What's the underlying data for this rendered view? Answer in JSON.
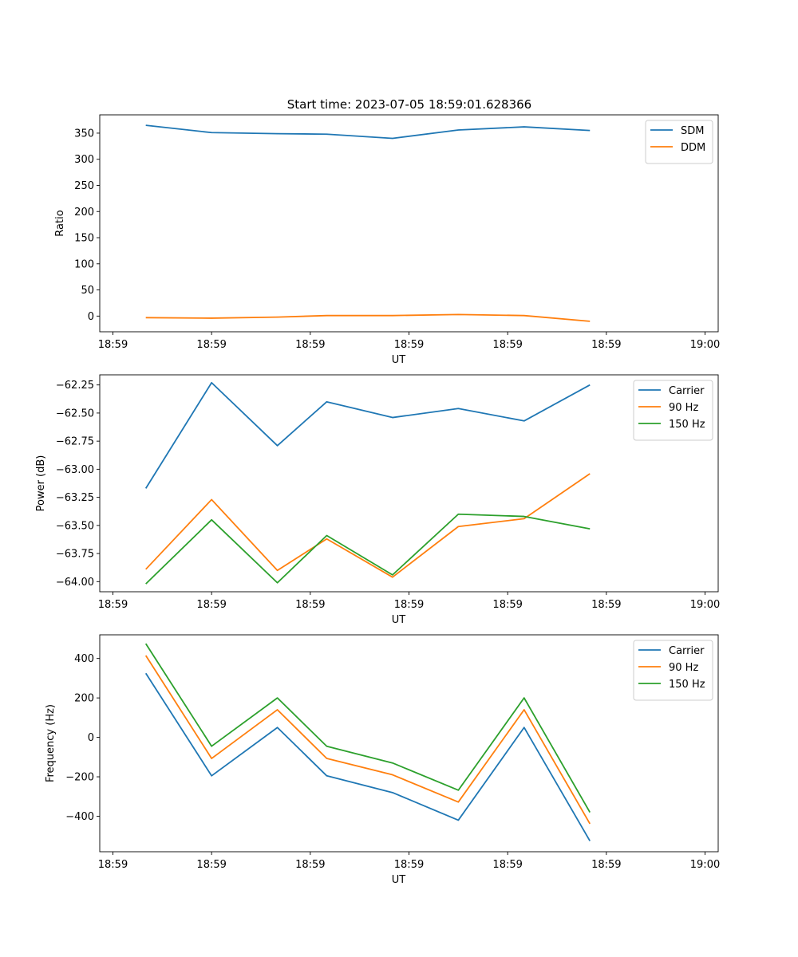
{
  "figure_title": "Start time: 2023-07-05 18:59:01.628366",
  "chart_data": [
    {
      "type": "line",
      "title": "Start time: 2023-07-05 18:59:01.628366",
      "xlabel": "UT",
      "ylabel": "Ratio",
      "x_seconds": [
        1.0,
        3.0,
        5.0,
        6.5,
        8.5,
        10.5,
        12.5,
        14.5
      ],
      "xlim": [
        -0.4,
        18.4
      ],
      "xticks": [
        0,
        3,
        6,
        9,
        12,
        15,
        18
      ],
      "xtick_labels": [
        "18:59",
        "18:59",
        "18:59",
        "18:59",
        "18:59",
        "18:59",
        "19:00"
      ],
      "ylim": [
        -30,
        385
      ],
      "yticks": [
        0,
        50,
        100,
        150,
        200,
        250,
        300,
        350
      ],
      "ytick_labels": [
        "0",
        "50",
        "100",
        "150",
        "200",
        "250",
        "300",
        "350"
      ],
      "legend": "upper right",
      "series": [
        {
          "name": "SDM",
          "color": "#1f77b4",
          "values": [
            365,
            351,
            349,
            348,
            340,
            356,
            362,
            355
          ]
        },
        {
          "name": "DDM",
          "color": "#ff7f0e",
          "values": [
            -3,
            -4,
            -2,
            1,
            1,
            3,
            1,
            -10
          ]
        }
      ]
    },
    {
      "type": "line",
      "title": "",
      "xlabel": "UT",
      "ylabel": "Power (dB)",
      "x_seconds": [
        1.0,
        3.0,
        5.0,
        6.5,
        8.5,
        10.5,
        12.5,
        14.5
      ],
      "xlim": [
        -0.4,
        18.4
      ],
      "xticks": [
        0,
        3,
        6,
        9,
        12,
        15,
        18
      ],
      "xtick_labels": [
        "18:59",
        "18:59",
        "18:59",
        "18:59",
        "18:59",
        "18:59",
        "19:00"
      ],
      "ylim": [
        -64.09,
        -62.16
      ],
      "yticks": [
        -64.0,
        -63.75,
        -63.5,
        -63.25,
        -63.0,
        -62.75,
        -62.5,
        -62.25
      ],
      "ytick_labels": [
        "−64.00",
        "−63.75",
        "−63.50",
        "−63.25",
        "−63.00",
        "−62.75",
        "−62.50",
        "−62.25"
      ],
      "legend": "upper right",
      "series": [
        {
          "name": "Carrier",
          "color": "#1f77b4",
          "values": [
            -63.17,
            -62.23,
            -62.79,
            -62.4,
            -62.54,
            -62.46,
            -62.57,
            -62.25
          ]
        },
        {
          "name": "90 Hz",
          "color": "#ff7f0e",
          "values": [
            -63.89,
            -63.27,
            -63.9,
            -63.62,
            -63.96,
            -63.51,
            -63.44,
            -63.04
          ]
        },
        {
          "name": "150 Hz",
          "color": "#2ca02c",
          "values": [
            -64.02,
            -63.45,
            -64.01,
            -63.59,
            -63.94,
            -63.4,
            -63.42,
            -63.53
          ]
        }
      ]
    },
    {
      "type": "line",
      "title": "",
      "xlabel": "UT",
      "ylabel": "Frequency (Hz)",
      "x_seconds": [
        1.0,
        3.0,
        5.0,
        6.5,
        8.5,
        10.5,
        12.5,
        14.5
      ],
      "xlim": [
        -0.4,
        18.4
      ],
      "xticks": [
        0,
        3,
        6,
        9,
        12,
        15,
        18
      ],
      "xtick_labels": [
        "18:59",
        "18:59",
        "18:59",
        "18:59",
        "18:59",
        "18:59",
        "19:00"
      ],
      "ylim": [
        -580,
        520
      ],
      "yticks": [
        -400,
        -200,
        0,
        200,
        400
      ],
      "ytick_labels": [
        "−400",
        "−200",
        "0",
        "200",
        "400"
      ],
      "legend": "upper right",
      "series": [
        {
          "name": "Carrier",
          "color": "#1f77b4",
          "values": [
            325,
            -195,
            50,
            -195,
            -280,
            -420,
            50,
            -525
          ]
        },
        {
          "name": "90 Hz",
          "color": "#ff7f0e",
          "values": [
            415,
            -107,
            140,
            -107,
            -190,
            -328,
            140,
            -438
          ]
        },
        {
          "name": "150 Hz",
          "color": "#2ca02c",
          "values": [
            475,
            -45,
            200,
            -45,
            -130,
            -268,
            200,
            -380
          ]
        }
      ]
    }
  ]
}
